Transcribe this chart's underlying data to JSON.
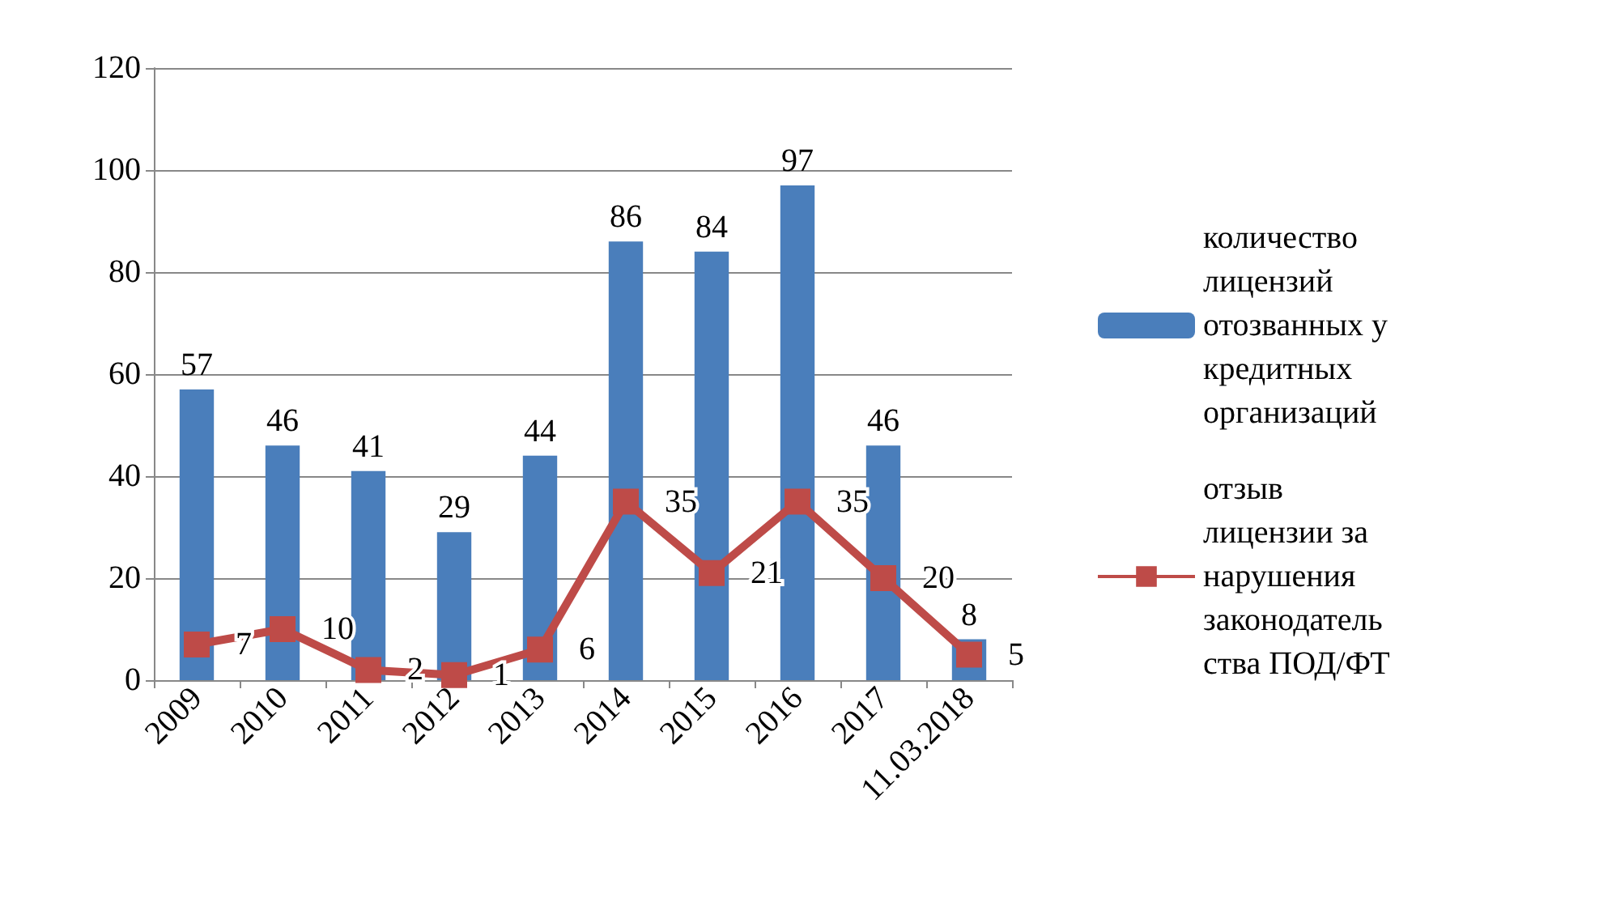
{
  "chart_data": {
    "type": "bar",
    "categories": [
      "2009",
      "2010",
      "2011",
      "2012",
      "2013",
      "2014",
      "2015",
      "2016",
      "2017",
      "11.03.2018"
    ],
    "series": [
      {
        "name": "количество лицензий отозванных у кредитных организаций",
        "color": "#4a7ebb",
        "values": [
          57,
          46,
          41,
          29,
          44,
          86,
          84,
          97,
          46,
          8
        ]
      },
      {
        "name": "отзыв лицензии за нарушения законодательства ПОД/ФТ",
        "type": "line",
        "color": "#be4b48",
        "values": [
          7,
          10,
          2,
          1,
          6,
          35,
          21,
          35,
          20,
          5
        ]
      }
    ],
    "ylim": [
      0,
      120
    ],
    "yticks": [
      0,
      20,
      40,
      60,
      80,
      100,
      120
    ],
    "grid": "y",
    "legend": "right",
    "marker": "square",
    "data_labels": true
  }
}
